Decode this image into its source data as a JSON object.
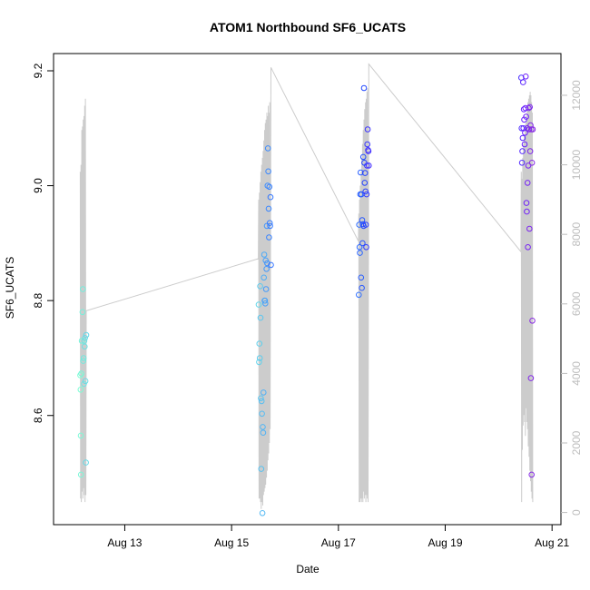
{
  "chart_data": {
    "type": "scatter",
    "title": "ATOM1 Northbound SF6_UCATS",
    "xlabel": "Date",
    "ylabel": "SF6_UCATS",
    "xlim": [
      "2016-08-11T16:00",
      "2016-08-21T04:00"
    ],
    "ylim": [
      8.41,
      9.23
    ],
    "y2lim": [
      -350,
      13200
    ],
    "x_ticks": [
      {
        "t": "2016-08-13",
        "label": "Aug 13"
      },
      {
        "t": "2016-08-15",
        "label": "Aug 15"
      },
      {
        "t": "2016-08-17",
        "label": "Aug 17"
      },
      {
        "t": "2016-08-19",
        "label": "Aug 19"
      },
      {
        "t": "2016-08-21",
        "label": "Aug 21"
      }
    ],
    "y_ticks": [
      8.6,
      8.8,
      9.0,
      9.2
    ],
    "y2_ticks": [
      0,
      2000,
      4000,
      6000,
      8000,
      10000,
      12000
    ],
    "colors": {
      "ramp": [
        "#7fffd4",
        "#5bc8f0",
        "#3a86ff",
        "#1f44ff",
        "#6a1fff",
        "#8a2be2"
      ],
      "altitude_line": "#cccccc",
      "right_axis": "#bdbdbd"
    },
    "series": [
      {
        "points": [
          [
            "2016-08-12T04:00",
            8.67
          ],
          [
            "2016-08-12T04:10",
            8.645
          ],
          [
            "2016-08-12T04:15",
            8.565
          ],
          [
            "2016-08-12T04:20",
            8.497
          ],
          [
            "2016-08-12T04:30",
            8.673
          ],
          [
            "2016-08-12T04:40",
            8.73
          ],
          [
            "2016-08-12T05:00",
            8.78
          ],
          [
            "2016-08-12T05:10",
            8.82
          ],
          [
            "2016-08-12T05:20",
            8.695
          ],
          [
            "2016-08-12T05:30",
            8.7
          ],
          [
            "2016-08-12T05:40",
            8.655
          ],
          [
            "2016-08-12T05:50",
            8.73
          ],
          [
            "2016-08-12T06:00",
            8.72
          ],
          [
            "2016-08-12T06:10",
            8.735
          ],
          [
            "2016-08-12T06:20",
            8.66
          ],
          [
            "2016-08-12T06:30",
            8.518
          ],
          [
            "2016-08-12T06:40",
            8.74
          ],
          [
            "2016-08-15T12:10",
            8.793
          ],
          [
            "2016-08-15T12:20",
            8.693
          ],
          [
            "2016-08-15T12:30",
            8.725
          ],
          [
            "2016-08-15T12:40",
            8.7
          ],
          [
            "2016-08-15T12:50",
            8.825
          ],
          [
            "2016-08-15T13:00",
            8.77
          ],
          [
            "2016-08-15T13:10",
            8.63
          ],
          [
            "2016-08-15T13:20",
            8.507
          ],
          [
            "2016-08-15T13:30",
            8.625
          ],
          [
            "2016-08-15T13:40",
            8.603
          ],
          [
            "2016-08-15T13:50",
            8.43
          ],
          [
            "2016-08-15T14:00",
            8.58
          ],
          [
            "2016-08-15T14:10",
            8.57
          ],
          [
            "2016-08-15T14:20",
            8.64
          ],
          [
            "2016-08-15T14:30",
            8.84
          ],
          [
            "2016-08-15T14:40",
            8.88
          ],
          [
            "2016-08-15T14:50",
            8.8
          ],
          [
            "2016-08-15T15:00",
            8.8
          ],
          [
            "2016-08-15T15:10",
            8.795
          ],
          [
            "2016-08-15T15:20",
            8.87
          ],
          [
            "2016-08-15T15:30",
            8.82
          ],
          [
            "2016-08-15T15:40",
            8.855
          ],
          [
            "2016-08-15T15:50",
            8.93
          ],
          [
            "2016-08-15T16:00",
            8.865
          ],
          [
            "2016-08-15T16:10",
            9.0
          ],
          [
            "2016-08-15T16:20",
            9.065
          ],
          [
            "2016-08-15T16:30",
            9.025
          ],
          [
            "2016-08-15T16:40",
            8.96
          ],
          [
            "2016-08-15T16:50",
            8.91
          ],
          [
            "2016-08-15T17:00",
            8.998
          ],
          [
            "2016-08-15T17:10",
            8.935
          ],
          [
            "2016-08-15T17:20",
            8.93
          ],
          [
            "2016-08-15T17:30",
            8.98
          ],
          [
            "2016-08-15T17:40",
            8.862
          ],
          [
            "2016-08-17T09:10",
            8.81
          ],
          [
            "2016-08-17T09:20",
            8.932
          ],
          [
            "2016-08-17T09:30",
            8.893
          ],
          [
            "2016-08-17T09:40",
            8.883
          ],
          [
            "2016-08-17T09:50",
            8.985
          ],
          [
            "2016-08-17T10:00",
            9.023
          ],
          [
            "2016-08-17T10:10",
            8.84
          ],
          [
            "2016-08-17T10:20",
            8.985
          ],
          [
            "2016-08-17T10:30",
            8.822
          ],
          [
            "2016-08-17T10:40",
            8.94
          ],
          [
            "2016-08-17T10:50",
            8.9
          ],
          [
            "2016-08-17T11:00",
            8.933
          ],
          [
            "2016-08-17T11:10",
            9.05
          ],
          [
            "2016-08-17T11:20",
            8.93
          ],
          [
            "2016-08-17T11:30",
            9.17
          ],
          [
            "2016-08-17T11:40",
            9.04
          ],
          [
            "2016-08-17T11:50",
            9.005
          ],
          [
            "2016-08-17T12:00",
            9.022
          ],
          [
            "2016-08-17T12:10",
            8.99
          ],
          [
            "2016-08-17T12:20",
            8.932
          ],
          [
            "2016-08-17T12:30",
            8.893
          ],
          [
            "2016-08-17T12:40",
            8.985
          ],
          [
            "2016-08-17T12:50",
            9.035
          ],
          [
            "2016-08-17T13:00",
            9.072
          ],
          [
            "2016-08-17T13:10",
            9.098
          ],
          [
            "2016-08-17T13:20",
            9.062
          ],
          [
            "2016-08-17T13:30",
            9.06
          ],
          [
            "2016-08-17T13:40",
            9.035
          ],
          [
            "2016-08-20T10:10",
            9.188
          ],
          [
            "2016-08-20T10:20",
            9.1
          ],
          [
            "2016-08-20T10:30",
            9.04
          ],
          [
            "2016-08-20T10:40",
            9.06
          ],
          [
            "2016-08-20T10:50",
            9.083
          ],
          [
            "2016-08-20T11:00",
            9.18
          ],
          [
            "2016-08-20T11:10",
            9.1
          ],
          [
            "2016-08-20T11:20",
            9.133
          ],
          [
            "2016-08-20T11:30",
            9.115
          ],
          [
            "2016-08-20T11:40",
            9.072
          ],
          [
            "2016-08-20T11:50",
            9.092
          ],
          [
            "2016-08-20T12:00",
            9.135
          ],
          [
            "2016-08-20T12:10",
            9.19
          ],
          [
            "2016-08-20T12:20",
            9.12
          ],
          [
            "2016-08-20T12:30",
            8.97
          ],
          [
            "2016-08-20T12:40",
            8.955
          ],
          [
            "2016-08-20T12:50",
            9.1
          ],
          [
            "2016-08-20T13:00",
            9.005
          ],
          [
            "2016-08-20T13:10",
            8.893
          ],
          [
            "2016-08-20T13:20",
            9.035
          ],
          [
            "2016-08-20T13:30",
            9.135
          ],
          [
            "2016-08-20T13:40",
            9.098
          ],
          [
            "2016-08-20T13:50",
            8.925
          ],
          [
            "2016-08-20T14:00",
            9.137
          ],
          [
            "2016-08-20T14:10",
            9.06
          ],
          [
            "2016-08-20T14:20",
            9.105
          ],
          [
            "2016-08-20T14:30",
            8.665
          ],
          [
            "2016-08-20T14:40",
            9.098
          ],
          [
            "2016-08-20T14:50",
            8.497
          ],
          [
            "2016-08-20T15:00",
            9.04
          ],
          [
            "2016-08-20T15:10",
            8.765
          ],
          [
            "2016-08-20T15:20",
            9.098
          ]
        ]
      },
      {
        "axis": "right",
        "points": [
          [
            "2016-08-12T04:00",
            9800
          ],
          [
            "2016-08-12T04:10",
            400
          ],
          [
            "2016-08-12T04:20",
            10000
          ],
          [
            "2016-08-12T04:30",
            300
          ],
          [
            "2016-08-12T04:40",
            11000
          ],
          [
            "2016-08-12T04:50",
            600
          ],
          [
            "2016-08-12T05:00",
            11100
          ],
          [
            "2016-08-12T05:10",
            400
          ],
          [
            "2016-08-12T05:20",
            11300
          ],
          [
            "2016-08-12T05:30",
            700
          ],
          [
            "2016-08-12T05:40",
            11400
          ],
          [
            "2016-08-12T05:50",
            500
          ],
          [
            "2016-08-12T06:00",
            11700
          ],
          [
            "2016-08-12T06:10",
            300
          ],
          [
            "2016-08-12T06:20",
            11900
          ],
          [
            "2016-08-12T06:30",
            500
          ],
          [
            "2016-08-12T06:40",
            5800
          ],
          [
            "2016-08-15T12:00",
            7300
          ],
          [
            "2016-08-15T12:10",
            9000
          ],
          [
            "2016-08-15T12:20",
            400
          ],
          [
            "2016-08-15T12:30",
            9200
          ],
          [
            "2016-08-15T12:40",
            400
          ],
          [
            "2016-08-15T12:50",
            9500
          ],
          [
            "2016-08-15T13:00",
            300
          ],
          [
            "2016-08-15T13:10",
            9800
          ],
          [
            "2016-08-15T13:20",
            100
          ],
          [
            "2016-08-15T13:30",
            10000
          ],
          [
            "2016-08-15T13:40",
            300
          ],
          [
            "2016-08-15T13:50",
            10200
          ],
          [
            "2016-08-15T14:00",
            200
          ],
          [
            "2016-08-15T14:10",
            10400
          ],
          [
            "2016-08-15T14:20",
            500
          ],
          [
            "2016-08-15T14:30",
            10700
          ],
          [
            "2016-08-15T14:40",
            600
          ],
          [
            "2016-08-15T14:50",
            11000
          ],
          [
            "2016-08-15T15:00",
            700
          ],
          [
            "2016-08-15T15:10",
            11200
          ],
          [
            "2016-08-15T15:20",
            800
          ],
          [
            "2016-08-15T15:30",
            11300
          ],
          [
            "2016-08-15T15:40",
            1000
          ],
          [
            "2016-08-15T15:50",
            11500
          ],
          [
            "2016-08-15T16:00",
            1200
          ],
          [
            "2016-08-15T16:10",
            11400
          ],
          [
            "2016-08-15T16:20",
            1500
          ],
          [
            "2016-08-15T16:30",
            11700
          ],
          [
            "2016-08-15T16:40",
            1700
          ],
          [
            "2016-08-15T16:50",
            11500
          ],
          [
            "2016-08-15T17:00",
            2000
          ],
          [
            "2016-08-15T17:10",
            11800
          ],
          [
            "2016-08-15T17:20",
            2400
          ],
          [
            "2016-08-15T17:40",
            12800
          ],
          [
            "2016-08-17T09:00",
            7800
          ],
          [
            "2016-08-17T09:10",
            8600
          ],
          [
            "2016-08-17T09:20",
            300
          ],
          [
            "2016-08-17T09:30",
            9000
          ],
          [
            "2016-08-17T09:40",
            300
          ],
          [
            "2016-08-17T09:50",
            9400
          ],
          [
            "2016-08-17T10:00",
            400
          ],
          [
            "2016-08-17T10:10",
            9800
          ],
          [
            "2016-08-17T10:20",
            300
          ],
          [
            "2016-08-17T10:30",
            10200
          ],
          [
            "2016-08-17T10:40",
            400
          ],
          [
            "2016-08-17T10:50",
            10600
          ],
          [
            "2016-08-17T11:00",
            300
          ],
          [
            "2016-08-17T11:10",
            11000
          ],
          [
            "2016-08-17T11:20",
            600
          ],
          [
            "2016-08-17T11:30",
            11300
          ],
          [
            "2016-08-17T11:40",
            400
          ],
          [
            "2016-08-17T11:50",
            11600
          ],
          [
            "2016-08-17T12:00",
            500
          ],
          [
            "2016-08-17T12:10",
            11800
          ],
          [
            "2016-08-17T12:20",
            300
          ],
          [
            "2016-08-17T12:30",
            11900
          ],
          [
            "2016-08-17T12:40",
            500
          ],
          [
            "2016-08-17T12:50",
            12100
          ],
          [
            "2016-08-17T13:00",
            400
          ],
          [
            "2016-08-17T13:10",
            12200
          ],
          [
            "2016-08-17T13:20",
            300
          ],
          [
            "2016-08-17T13:40",
            12900
          ],
          [
            "2016-08-20T10:00",
            7500
          ],
          [
            "2016-08-20T10:10",
            9800
          ],
          [
            "2016-08-20T10:20",
            300
          ],
          [
            "2016-08-20T10:30",
            9600
          ],
          [
            "2016-08-20T10:40",
            1800
          ],
          [
            "2016-08-20T10:50",
            10200
          ],
          [
            "2016-08-20T11:00",
            2500
          ],
          [
            "2016-08-20T11:10",
            10600
          ],
          [
            "2016-08-20T11:20",
            2800
          ],
          [
            "2016-08-20T11:30",
            10800
          ],
          [
            "2016-08-20T11:40",
            2600
          ],
          [
            "2016-08-20T11:50",
            11000
          ],
          [
            "2016-08-20T12:00",
            2200
          ],
          [
            "2016-08-20T12:10",
            11200
          ],
          [
            "2016-08-20T12:20",
            3000
          ],
          [
            "2016-08-20T12:30",
            11400
          ],
          [
            "2016-08-20T12:40",
            2600
          ],
          [
            "2016-08-20T12:50",
            11600
          ],
          [
            "2016-08-20T13:00",
            2400
          ],
          [
            "2016-08-20T13:10",
            11800
          ],
          [
            "2016-08-20T13:20",
            1900
          ],
          [
            "2016-08-20T13:30",
            11900
          ],
          [
            "2016-08-20T13:40",
            1600
          ],
          [
            "2016-08-20T13:50",
            12000
          ],
          [
            "2016-08-20T14:00",
            1200
          ],
          [
            "2016-08-20T14:10",
            12100
          ],
          [
            "2016-08-20T14:20",
            900
          ],
          [
            "2016-08-20T14:30",
            12000
          ],
          [
            "2016-08-20T14:40",
            600
          ],
          [
            "2016-08-20T14:50",
            11800
          ],
          [
            "2016-08-20T15:00",
            400
          ],
          [
            "2016-08-20T15:10",
            11500
          ],
          [
            "2016-08-20T15:20",
            300
          ]
        ]
      }
    ]
  }
}
